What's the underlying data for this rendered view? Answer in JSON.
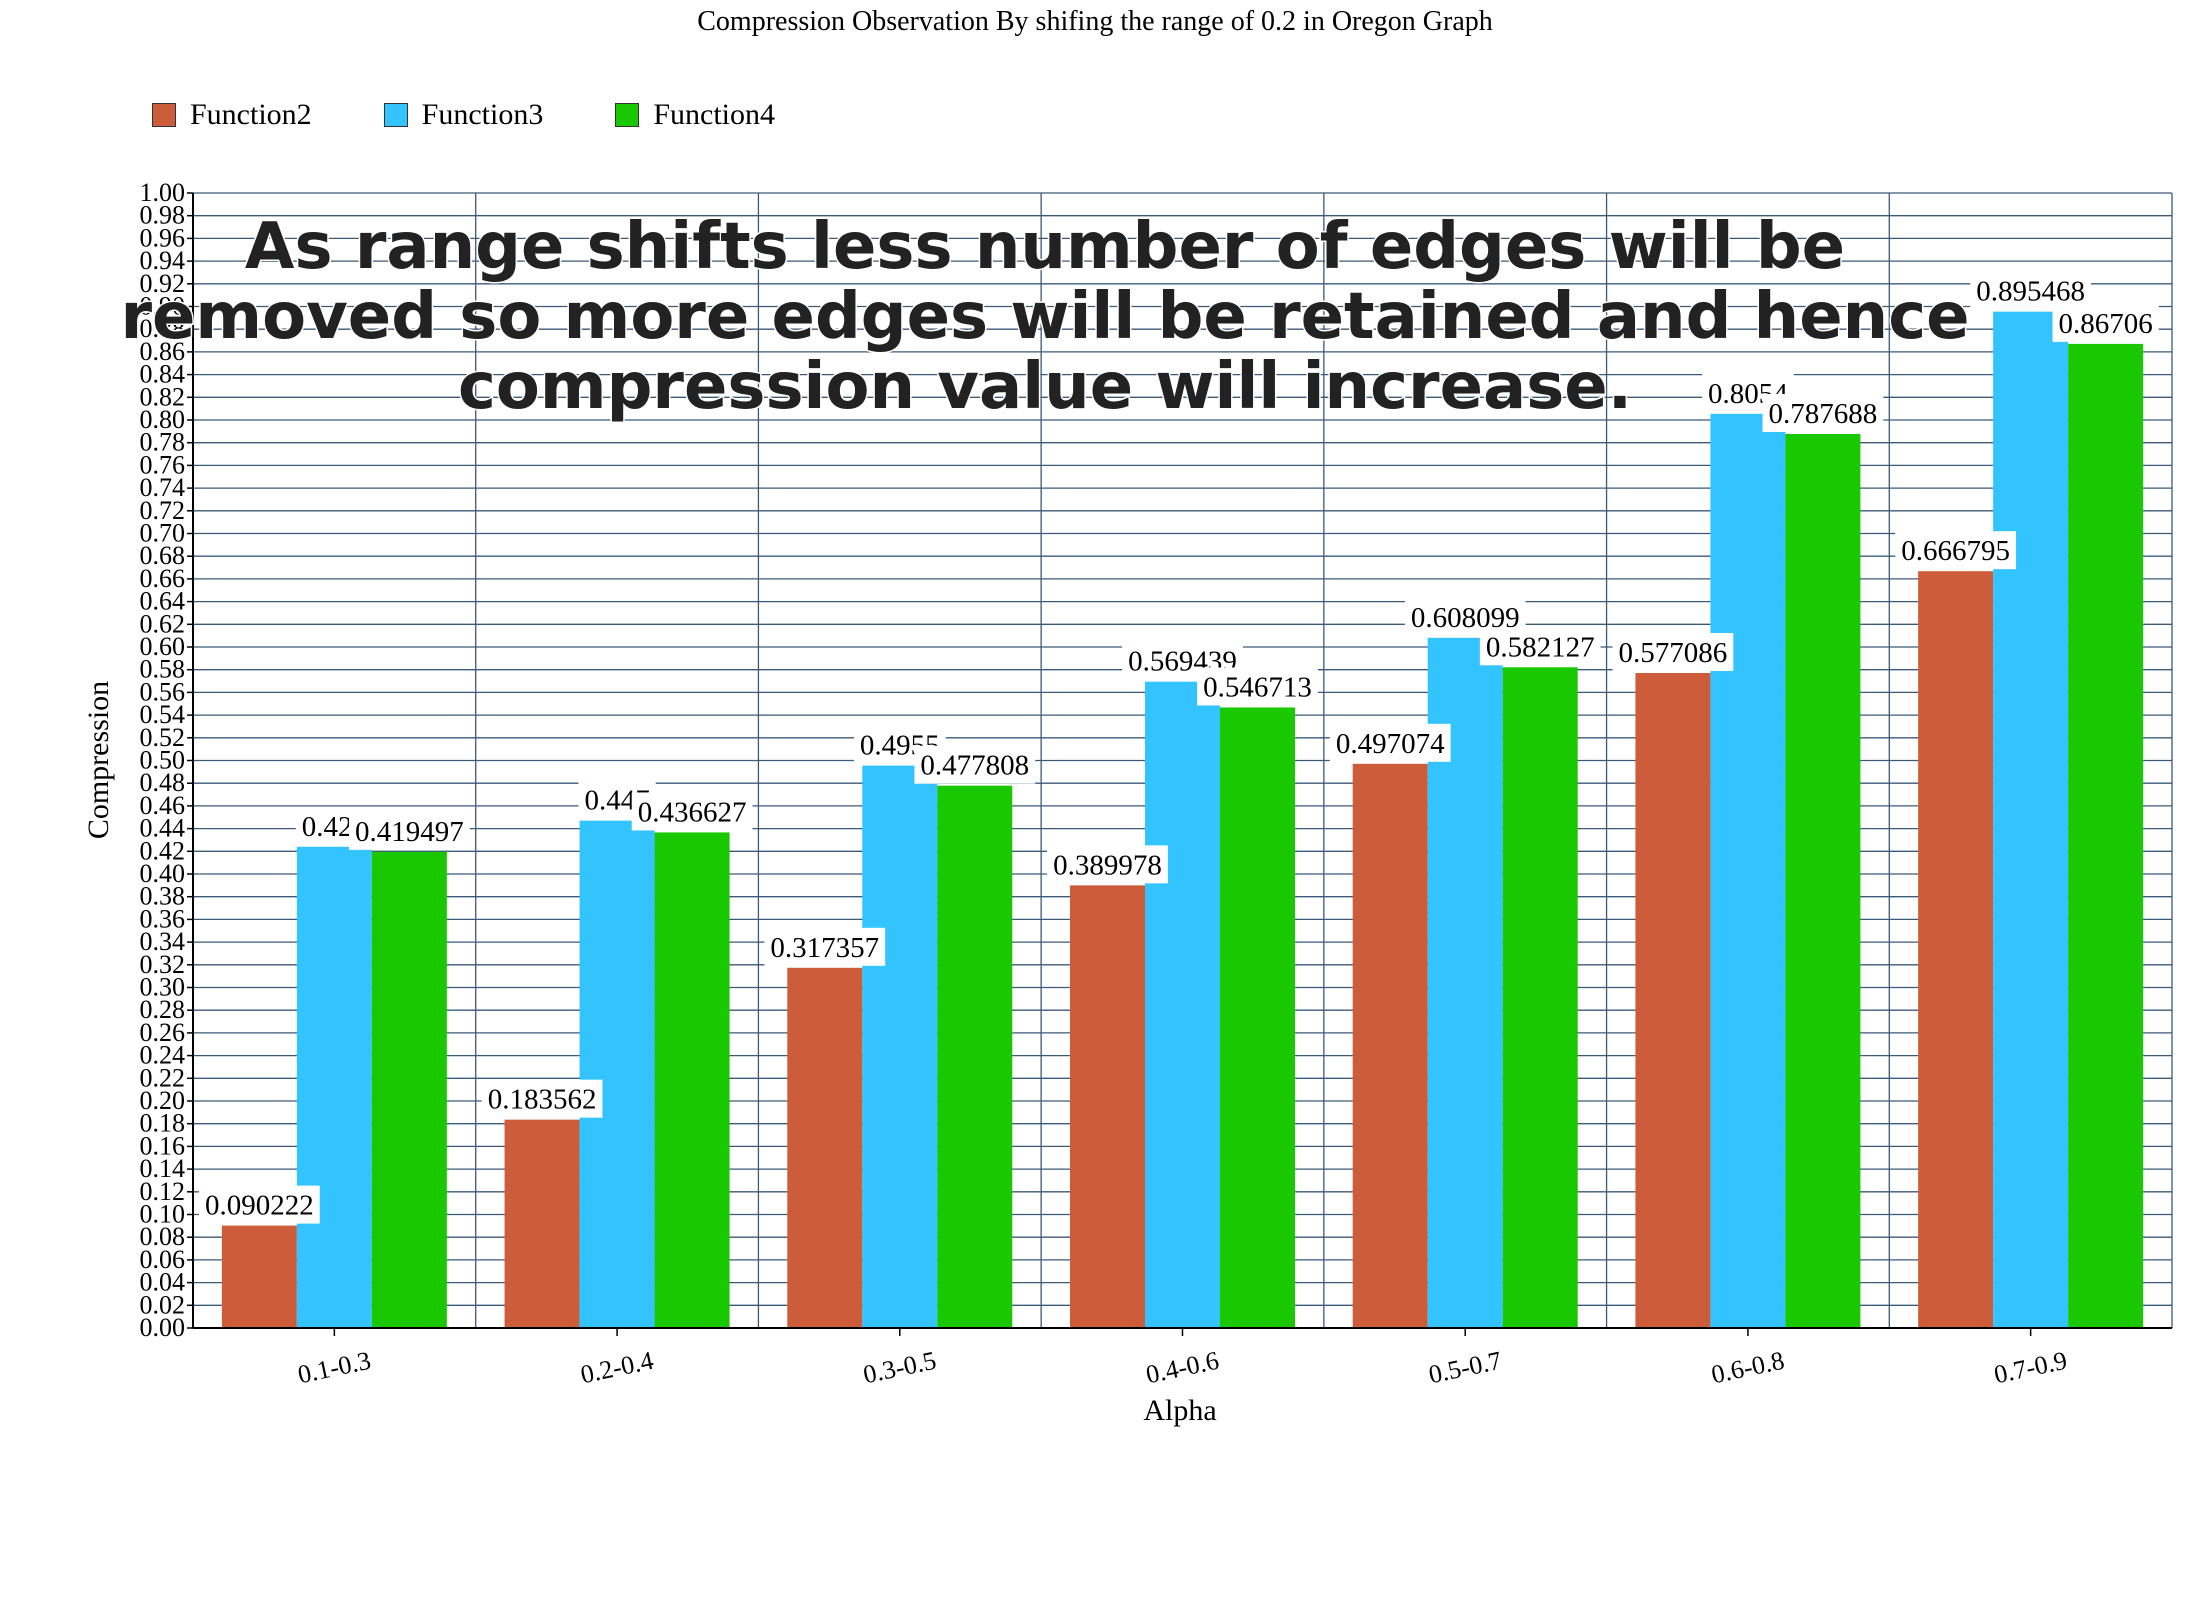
{
  "chart_data": {
    "type": "bar",
    "title": "Compression Observation By shifing the range of 0.2 in Oregon Graph",
    "xlabel": "Alpha",
    "ylabel": "Compression",
    "ylim": [
      0,
      1.0
    ],
    "ytick_step": 0.02,
    "ytick_labels": [
      "0.00",
      "0.02",
      "0.04",
      "0.06",
      "0.08",
      "0.10",
      "0.12",
      "0.14",
      "0.16",
      "0.18",
      "0.20",
      "0.22",
      "0.24",
      "0.26",
      "0.28",
      "0.30",
      "0.32",
      "0.34",
      "0.36",
      "0.38",
      "0.40",
      "0.42",
      "0.44",
      "0.46",
      "0.48",
      "0.50",
      "0.52",
      "0.54",
      "0.56",
      "0.58",
      "0.60",
      "0.62",
      "0.64",
      "0.66",
      "0.68",
      "0.70",
      "0.72",
      "0.74",
      "0.76",
      "0.78",
      "0.80",
      "0.82",
      "0.84",
      "0.86",
      "0.88",
      "0.90",
      "0.92",
      "0.94",
      "0.96",
      "0.98",
      "1.00"
    ],
    "grid": true,
    "legend_position": "top-left",
    "categories": [
      "0.1-0.3",
      "0.2-0.4",
      "0.3-0.5",
      "0.4-0.6",
      "0.5-0.7",
      "0.6-0.8",
      "0.7-0.9"
    ],
    "series": [
      {
        "name": "Function2",
        "color": "#cd5c3b",
        "values": [
          0.090222,
          0.183562,
          0.317357,
          0.389978,
          0.497074,
          0.577086,
          0.666795
        ],
        "labels": [
          "0.090222",
          "0.183562",
          "0.317357",
          "0.389978",
          "0.497074",
          "0.577086",
          "0.666795"
        ]
      },
      {
        "name": "Function3",
        "color": "#33c4ff",
        "values": [
          0.424,
          0.447,
          0.4955,
          0.569439,
          0.608099,
          0.805417,
          0.895468
        ],
        "labels": [
          "0.424",
          "0.447",
          "0.4955",
          "0.569439",
          "0.608099",
          "0.8054",
          "0.895468"
        ]
      },
      {
        "name": "Function4",
        "color": "#1ac800",
        "values": [
          0.419497,
          0.436627,
          0.477808,
          0.546713,
          0.582127,
          0.787688,
          0.86706
        ],
        "labels": [
          "0.419497",
          "0.436627",
          "0.477808",
          "0.546713",
          "0.582127",
          "0.787688",
          "0.86706"
        ]
      }
    ],
    "annotation": {
      "lines": [
        "As range shifts less number of edges will be",
        "removed so more edges will be retained and hence",
        "compression value will increase."
      ]
    }
  },
  "colors": {
    "grid": "#3a5a7a",
    "axis": "#000000",
    "label_background": "#ffffff"
  }
}
